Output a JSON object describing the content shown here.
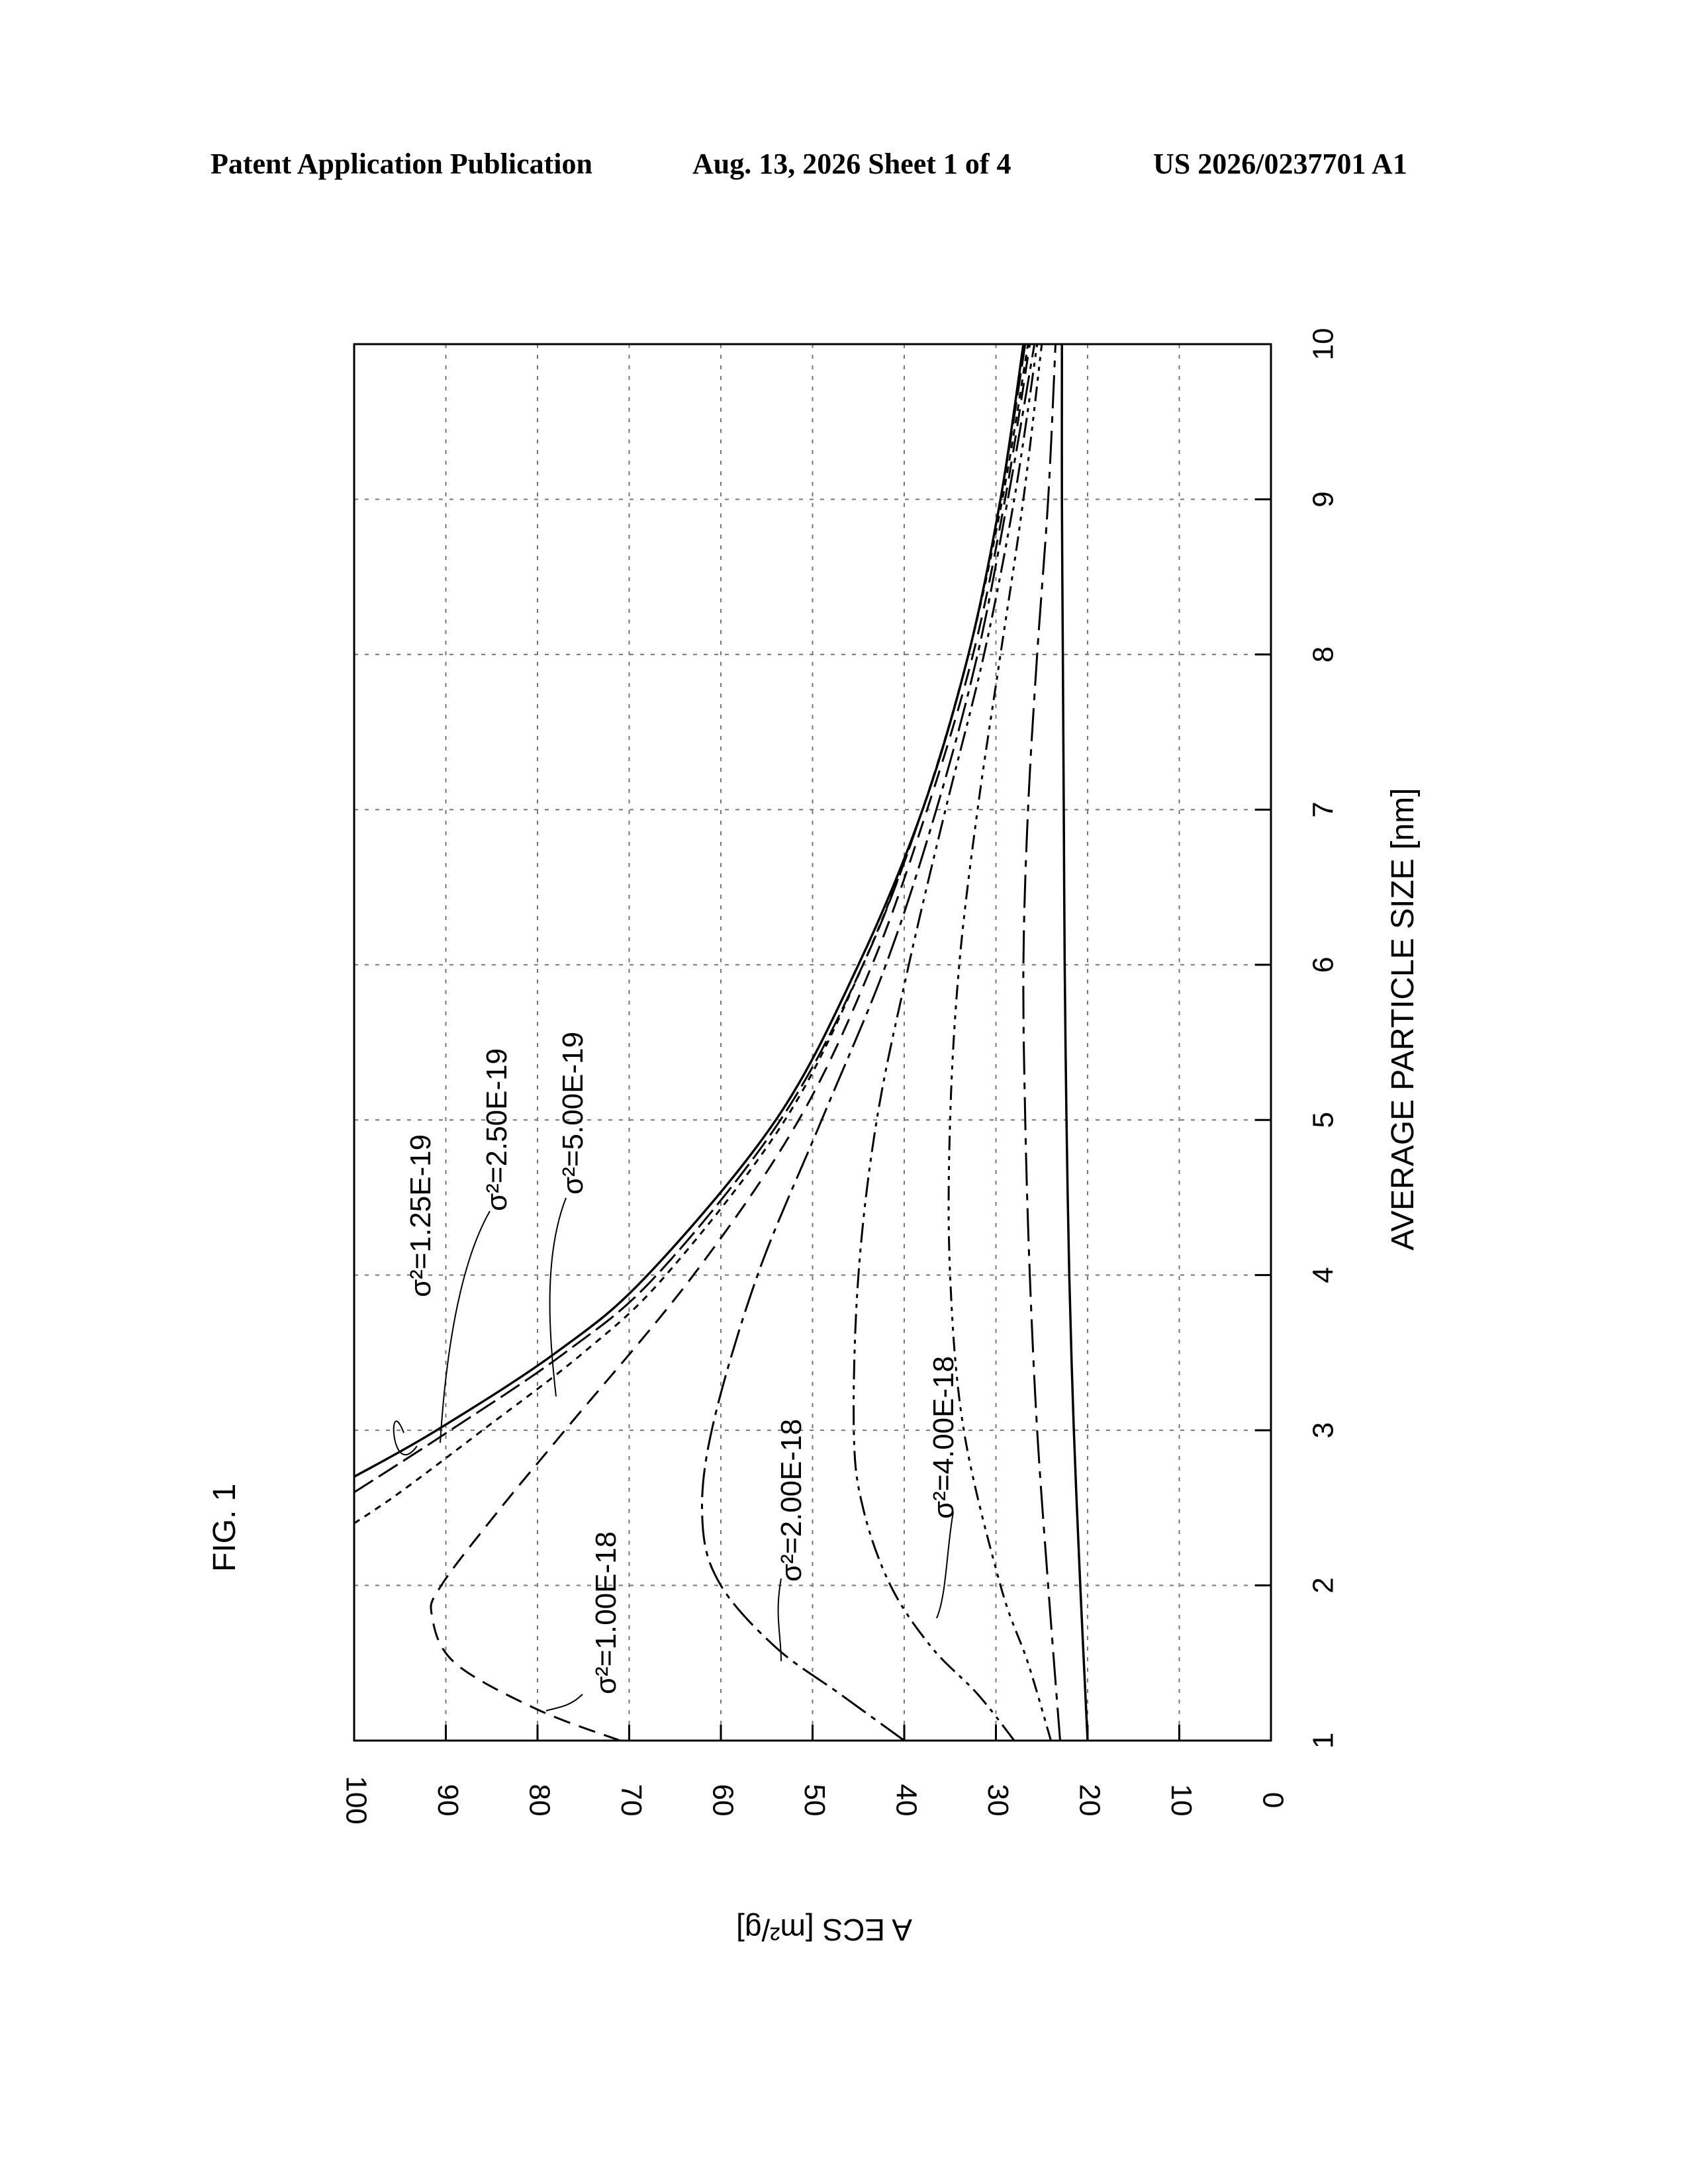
{
  "header": {
    "publication": "Patent Application Publication",
    "date_sheet": "Aug. 13, 2026  Sheet 1 of 4",
    "number": "US 2026/0237701 A1"
  },
  "figure_label": "FIG. 1",
  "chart_data": {
    "type": "line",
    "title": "",
    "xlabel": "AVERAGE PARTICLE SIZE [nm]",
    "ylabel": "A ECS [m²/g]",
    "xlim": [
      1,
      10
    ],
    "ylim": [
      0,
      100
    ],
    "x_ticks": [
      1,
      2,
      3,
      4,
      5,
      6,
      7,
      8,
      9,
      10
    ],
    "y_ticks": [
      0,
      10,
      20,
      30,
      40,
      50,
      60,
      70,
      80,
      90,
      100
    ],
    "grid": true,
    "orientation": "rotated 90° counter-clockwise on page",
    "series": [
      {
        "name": "σ²=1.25E-19",
        "x": [
          2.7,
          3,
          3.5,
          4,
          5,
          6,
          7,
          8,
          9,
          10
        ],
        "y": [
          100,
          91,
          78,
          68,
          54,
          45,
          38,
          33,
          29.5,
          27
        ]
      },
      {
        "name": "σ²=2.50E-19",
        "x": [
          2.6,
          3,
          3.5,
          4,
          5,
          6,
          7,
          8,
          9,
          10
        ],
        "y": [
          100,
          89.5,
          77,
          67,
          53.5,
          44.5,
          38,
          33,
          29.5,
          26.8
        ]
      },
      {
        "name": "σ²=5.00E-19",
        "x": [
          2.4,
          2.6,
          3,
          3.5,
          4,
          5,
          6,
          7,
          8,
          9,
          10
        ],
        "y": [
          100,
          95,
          86,
          75,
          66,
          53,
          44.5,
          38,
          33,
          29.3,
          26.5
        ]
      },
      {
        "name": "σ²=1.00E-18",
        "x": [
          1,
          1.2,
          1.5,
          1.8,
          2,
          2.5,
          3,
          4,
          5,
          6,
          7,
          8,
          9,
          10
        ],
        "y": [
          71,
          80,
          89,
          91.5,
          90.5,
          84,
          77,
          63,
          51.5,
          43.5,
          37.5,
          32.5,
          29,
          26.3
        ]
      },
      {
        "name": "σ²=2.00E-18",
        "x": [
          1,
          1.3,
          1.6,
          2,
          2.4,
          3,
          4,
          5,
          6,
          7,
          8,
          9,
          10
        ],
        "y": [
          40,
          47,
          54,
          60,
          62,
          61,
          56,
          49,
          42,
          36.5,
          32,
          28.7,
          25.8
        ]
      },
      {
        "name": "",
        "x": [
          1,
          1.3,
          1.6,
          2,
          2.5,
          3,
          4,
          5,
          6,
          7,
          8,
          9,
          10
        ],
        "y": [
          28,
          32,
          37,
          41.5,
          44.5,
          45.5,
          45,
          43,
          39.5,
          35.5,
          31.3,
          28,
          25.5
        ]
      },
      {
        "name": "σ²=4.00E-18",
        "x": [
          1,
          1.5,
          2,
          3,
          4,
          5,
          6,
          7,
          8,
          9,
          10
        ],
        "y": [
          24,
          26.5,
          29.5,
          33.5,
          35,
          35,
          34,
          32,
          29.5,
          27,
          25
        ]
      },
      {
        "name": "",
        "x": [
          1,
          2,
          3,
          4,
          5,
          6,
          7,
          8,
          9,
          10
        ],
        "y": [
          23,
          24.3,
          25.5,
          26.3,
          26.8,
          27,
          26.5,
          25.5,
          24.3,
          23.5
        ]
      },
      {
        "name": "",
        "x": [
          1,
          2,
          3,
          4,
          5,
          6,
          7,
          8,
          9,
          10
        ],
        "y": [
          20,
          20.8,
          21.5,
          22,
          22.3,
          22.5,
          22.6,
          22.7,
          22.8,
          22.8
        ]
      }
    ]
  }
}
